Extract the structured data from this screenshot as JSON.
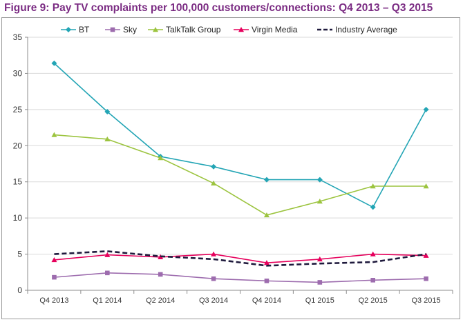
{
  "colors": {
    "title": "#7b2c83",
    "axis": "#8c8c8c",
    "gridline": "#d9d9d9",
    "tick_text": "#333333"
  },
  "chart_data": {
    "type": "line",
    "title": "Figure 9: Pay TV complaints per 100,000 customers/connections: Q4 2013 – Q3 2015",
    "xlabel": "",
    "ylabel": "",
    "categories": [
      "Q4 2013",
      "Q1 2014",
      "Q2 2014",
      "Q3 2014",
      "Q4 2014",
      "Q1 2015",
      "Q2 2015",
      "Q3 2015"
    ],
    "ylim": [
      0,
      35
    ],
    "yticks": [
      0,
      5,
      10,
      15,
      20,
      25,
      30,
      35
    ],
    "grid": "horizontal",
    "legend_position": "top",
    "series": [
      {
        "name": "BT",
        "color": "#23a5b5",
        "marker": "diamond",
        "dash": "solid",
        "values": [
          31.4,
          24.7,
          18.5,
          17.1,
          15.3,
          15.3,
          11.5,
          25.0
        ]
      },
      {
        "name": "Sky",
        "color": "#9d6cae",
        "marker": "square",
        "dash": "solid",
        "values": [
          1.8,
          2.4,
          2.2,
          1.6,
          1.3,
          1.1,
          1.4,
          1.6
        ]
      },
      {
        "name": "TalkTalk Group",
        "color": "#9cc43f",
        "marker": "triangle",
        "dash": "solid",
        "values": [
          21.5,
          20.9,
          18.3,
          14.8,
          10.4,
          12.3,
          14.4,
          14.4
        ]
      },
      {
        "name": "Virgin Media",
        "color": "#e6005c",
        "marker": "triangle",
        "dash": "solid",
        "values": [
          4.2,
          4.9,
          4.6,
          5.0,
          3.8,
          4.3,
          5.0,
          4.8
        ]
      },
      {
        "name": "Industry Average",
        "color": "#1f1a3d",
        "marker": "none",
        "dash": "dashed",
        "values": [
          5.0,
          5.4,
          4.7,
          4.3,
          3.4,
          3.7,
          3.9,
          5.0
        ]
      }
    ]
  }
}
